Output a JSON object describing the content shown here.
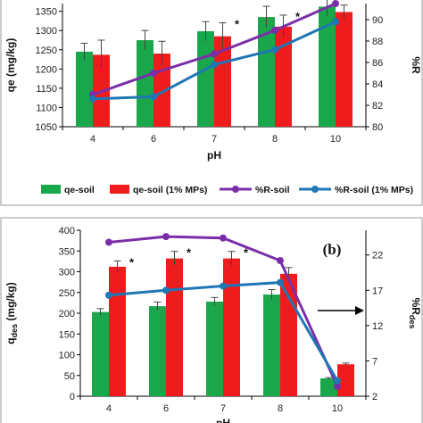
{
  "colors": {
    "green": "#1aa64a",
    "red": "#ee1c1c",
    "purple": "#7a2fa8",
    "blue": "#1f77b4",
    "frame": "#9a9a9a"
  },
  "legend": {
    "items": [
      {
        "label": "qe-soil",
        "kind": "bar",
        "color": "#1aa64a"
      },
      {
        "label": "qe-soil (1% MPs)",
        "kind": "bar",
        "color": "#ee1c1c"
      },
      {
        "label": "%R-soil",
        "kind": "line",
        "color": "#7a2fa8"
      },
      {
        "label": "%R-soil (1% MPs)",
        "kind": "line",
        "color": "#1f77b4"
      }
    ]
  },
  "chart_data": [
    {
      "type": "bar",
      "categories": [
        "4",
        "6",
        "7",
        "8",
        "10"
      ],
      "xlabel": "pH",
      "ylabel": "qe (mg/kg)",
      "y2label": "%R",
      "ylim": [
        1050,
        1370
      ],
      "yticks": [
        1050,
        1100,
        1150,
        1200,
        1250,
        1300,
        1350
      ],
      "y2lim": [
        80,
        91.5
      ],
      "y2ticks": [
        80,
        82,
        84,
        86,
        88,
        90
      ],
      "series": [
        {
          "name": "qe-soil",
          "axis": "left",
          "kind": "bar",
          "values": [
            1245,
            1275,
            1298,
            1335,
            1362
          ],
          "errors": [
            22,
            25,
            25,
            28,
            25
          ]
        },
        {
          "name": "qe-soil (1% MPs)",
          "axis": "left",
          "kind": "bar",
          "values": [
            1237,
            1240,
            1285,
            1310,
            1348
          ],
          "errors": [
            38,
            32,
            35,
            30,
            18
          ]
        },
        {
          "name": "%R-soil",
          "axis": "right",
          "kind": "line",
          "values": [
            83.0,
            85.0,
            86.8,
            89.0,
            91.5
          ]
        },
        {
          "name": "%R-soil (1% MPs)",
          "axis": "right",
          "kind": "line",
          "values": [
            82.6,
            82.8,
            85.8,
            87.2,
            89.8
          ]
        }
      ],
      "annotations": [
        {
          "text": "*",
          "category": "7"
        },
        {
          "text": "*",
          "category": "8"
        }
      ]
    },
    {
      "type": "bar",
      "panel_label": "(b)",
      "categories": [
        "4",
        "6",
        "7",
        "8",
        "10"
      ],
      "xlabel": "pH",
      "ylabel": "qdes (mg/kg)",
      "ylabel_main": "q",
      "ylabel_sub": "des",
      "ylabel_rest": " (mg/kg)",
      "y2label": "%Rdes",
      "y2label_main": "%R",
      "y2label_sub": "des",
      "ylim": [
        0,
        400
      ],
      "yticks": [
        0,
        50,
        100,
        150,
        200,
        250,
        300,
        350,
        400
      ],
      "y2lim": [
        2,
        25.5
      ],
      "y2ticks": [
        2,
        7,
        12,
        17,
        22
      ],
      "series": [
        {
          "name": "qe-soil",
          "axis": "left",
          "kind": "bar",
          "values": [
            203,
            217,
            228,
            245,
            43
          ],
          "errors": [
            8,
            10,
            10,
            12,
            2
          ]
        },
        {
          "name": "qe-soil (1% MPs)",
          "axis": "left",
          "kind": "bar",
          "values": [
            312,
            332,
            332,
            295,
            77
          ],
          "errors": [
            14,
            17,
            17,
            15,
            3
          ]
        },
        {
          "name": "%R-soil",
          "axis": "right",
          "kind": "line",
          "values": [
            23.8,
            24.6,
            24.4,
            21.2,
            3.4
          ]
        },
        {
          "name": "%R-soil (1% MPs)",
          "axis": "right",
          "kind": "line",
          "values": [
            16.3,
            17.0,
            17.6,
            18.1,
            4.2
          ]
        }
      ],
      "annotations": [
        {
          "text": "*",
          "category": "4"
        },
        {
          "text": "*",
          "category": "6"
        },
        {
          "text": "*",
          "category": "7"
        }
      ]
    }
  ]
}
